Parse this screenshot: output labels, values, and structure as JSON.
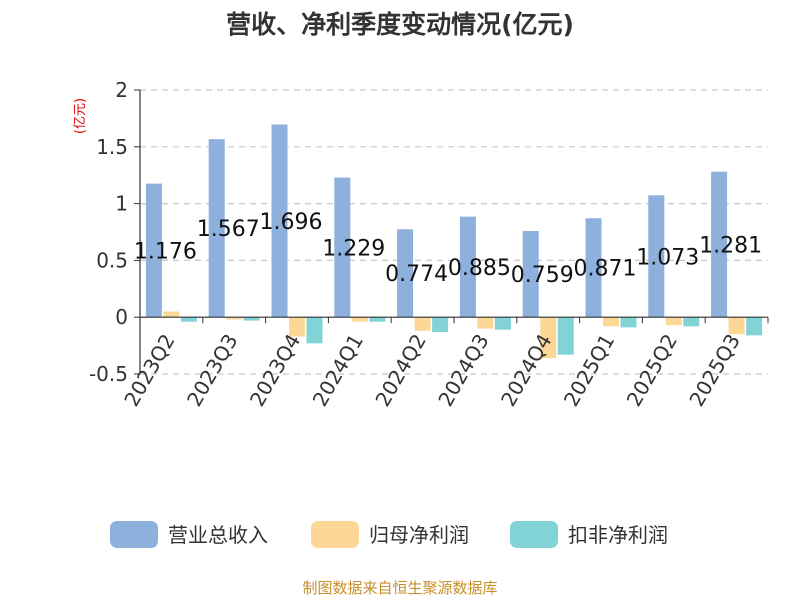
{
  "chart_data": {
    "type": "bar",
    "title": "营收、净利季度变动情况(亿元)",
    "ylabel": "(亿元)",
    "xlabel": "",
    "ylim": [
      -0.5,
      2
    ],
    "yticks": [
      2,
      1.5,
      1,
      0.5,
      0,
      -0.5
    ],
    "ytick_labels": [
      "2",
      "1.5",
      "1",
      "0.5",
      "0",
      "-0.5"
    ],
    "grid": true,
    "legend_position": "bottom",
    "categories": [
      "2023Q2",
      "2023Q3",
      "2023Q4",
      "2024Q1",
      "2024Q2",
      "2024Q3",
      "2024Q4",
      "2025Q1",
      "2025Q2",
      "2025Q3"
    ],
    "series": [
      {
        "name": "营业总收入",
        "color": "#8eb0dc",
        "values": [
          1.176,
          1.567,
          1.696,
          1.229,
          0.774,
          0.885,
          0.759,
          0.871,
          1.073,
          1.281
        ],
        "data_labels": [
          "1.176",
          "1.567",
          "1.696",
          "1.229",
          "0.774",
          "0.885",
          "0.759",
          "0.871",
          "1.073",
          "1.281"
        ]
      },
      {
        "name": "归母净利润",
        "color": "#fcd795",
        "values": [
          0.05,
          -0.02,
          -0.17,
          -0.04,
          -0.12,
          -0.1,
          -0.36,
          -0.08,
          -0.07,
          -0.15
        ]
      },
      {
        "name": "扣非净利润",
        "color": "#82d3d6",
        "values": [
          -0.04,
          -0.03,
          -0.23,
          -0.04,
          -0.13,
          -0.11,
          -0.33,
          -0.09,
          -0.08,
          -0.16
        ]
      }
    ],
    "source": "制图数据来自恒生聚源数据库"
  }
}
